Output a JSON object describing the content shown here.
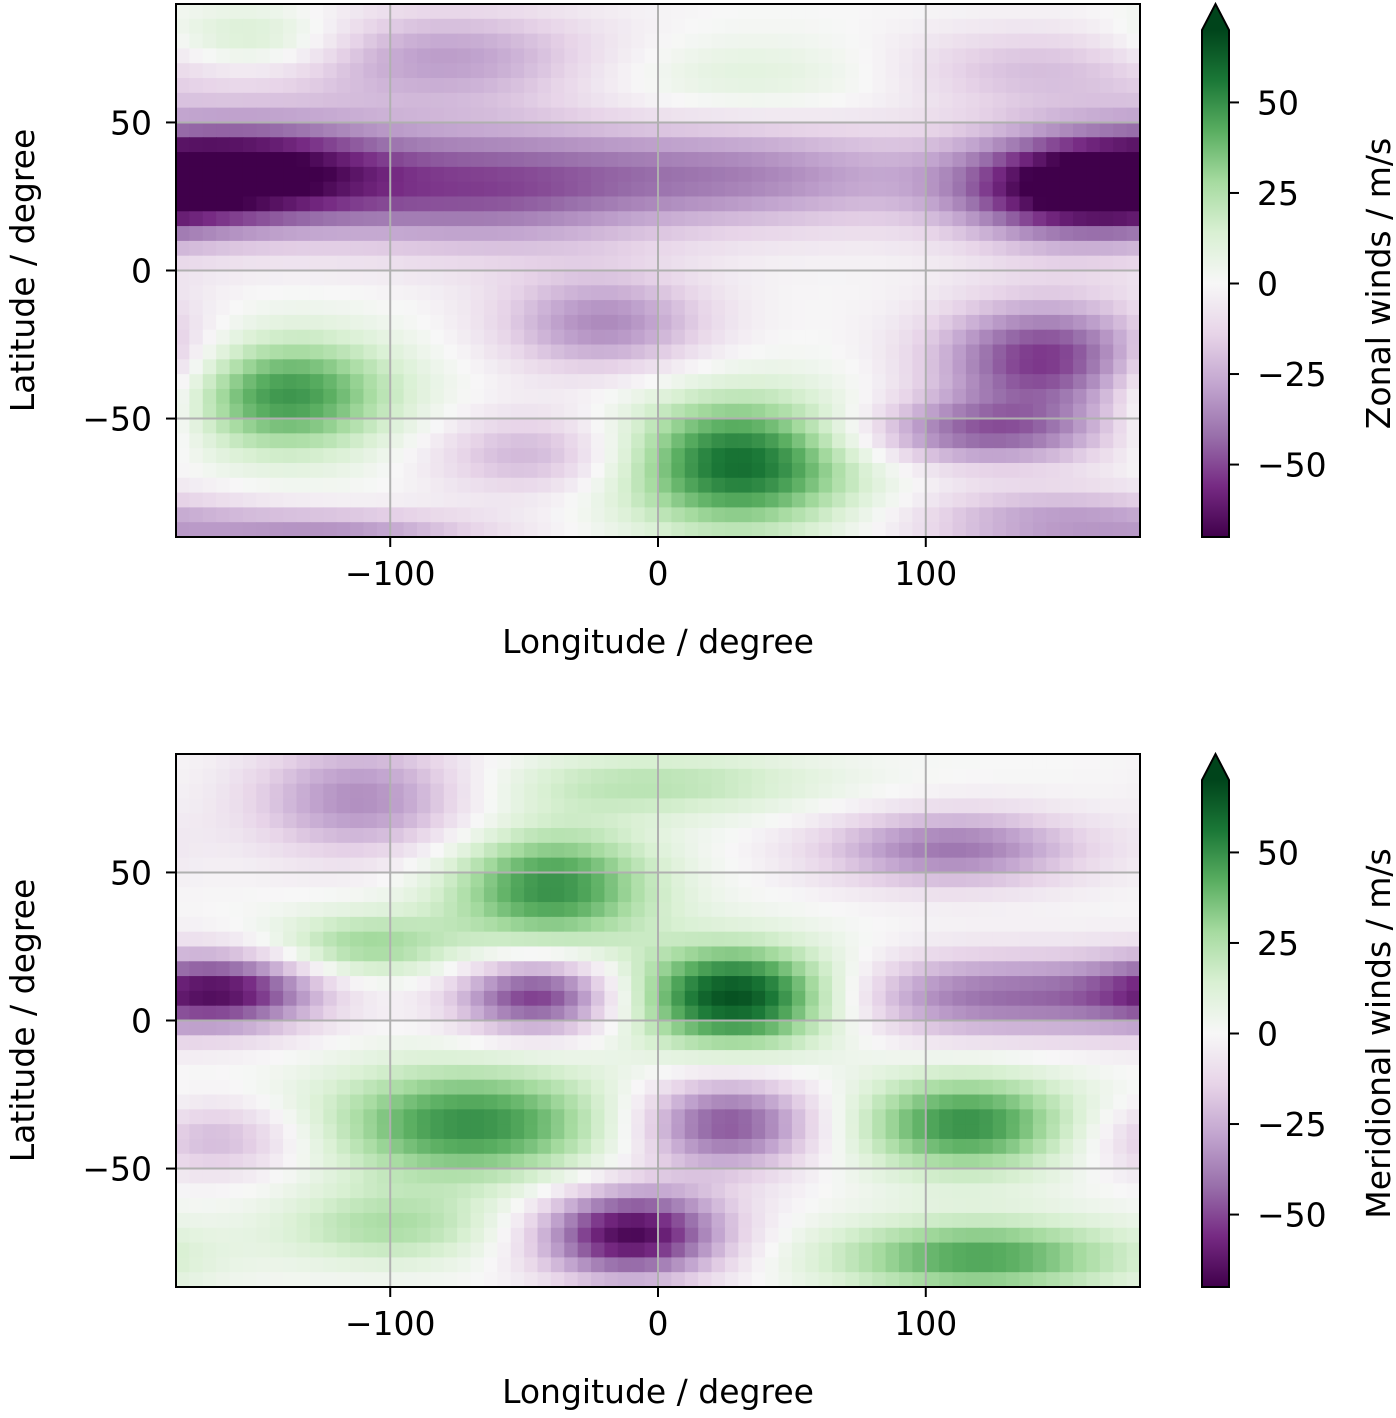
{
  "chart_data": [
    {
      "type": "heatmap",
      "title": "",
      "xlabel": "Longitude / degree",
      "ylabel": "Latitude / degree",
      "xlim": [
        -180,
        180
      ],
      "ylim": [
        -90,
        90
      ],
      "xticks": [
        -100,
        0,
        100
      ],
      "xtick_labels": [
        "−100",
        "0",
        "100"
      ],
      "yticks": [
        -50,
        0,
        50
      ],
      "ytick_labels": [
        "−50",
        "0",
        "50"
      ],
      "grid": true,
      "colormap": "PRGn",
      "colormap_stops": [
        "#40004b",
        "#762a83",
        "#9970ab",
        "#c2a5cf",
        "#e7d4e8",
        "#f7f7f7",
        "#d9f0d3",
        "#a6dba0",
        "#5aae61",
        "#1b7837",
        "#00441b"
      ],
      "vmin": -70,
      "vmax": 70,
      "colorbar_label": "Zonal winds / m/s",
      "colorbar_ticks": [
        50,
        25,
        0,
        -25,
        -50
      ],
      "colorbar_tick_labels": [
        "50",
        "25",
        "0",
        "−25",
        "−50"
      ],
      "colorbar_extend": "max",
      "features": [
        {
          "lon": -150,
          "lat": 78,
          "amp": 22,
          "slon": 25,
          "slat": 8
        },
        {
          "lon": 30,
          "lat": 65,
          "amp": 12,
          "slon": 45,
          "slat": 10
        },
        {
          "lon": -80,
          "lat": 72,
          "amp": -30,
          "slon": 45,
          "slat": 12
        },
        {
          "lon": 140,
          "lat": 68,
          "amp": -20,
          "slon": 40,
          "slat": 10
        },
        {
          "lon": -150,
          "lat": 33,
          "amp": -62,
          "slon": 35,
          "slat": 13
        },
        {
          "lon": -70,
          "lat": 28,
          "amp": -42,
          "slon": 45,
          "slat": 15
        },
        {
          "lon": 30,
          "lat": 32,
          "amp": -35,
          "slon": 55,
          "slat": 13
        },
        {
          "lon": 155,
          "lat": 28,
          "amp": -70,
          "slon": 32,
          "slat": 13
        },
        {
          "lon": -20,
          "lat": -18,
          "amp": -35,
          "slon": 28,
          "slat": 12
        },
        {
          "lon": 145,
          "lat": -30,
          "amp": -55,
          "slon": 30,
          "slat": 14
        },
        {
          "lon": 120,
          "lat": -55,
          "amp": -40,
          "slon": 35,
          "slat": 8
        },
        {
          "lon": -140,
          "lat": -42,
          "amp": 50,
          "slon": 30,
          "slat": 14
        },
        {
          "lon": 30,
          "lat": -65,
          "amp": 60,
          "slon": 32,
          "slat": 16
        },
        {
          "lon": -45,
          "lat": -62,
          "amp": -25,
          "slon": 28,
          "slat": 10
        },
        {
          "lon": -120,
          "lat": -88,
          "amp": -30,
          "slon": 40,
          "slat": 5
        },
        {
          "lon": 150,
          "lat": -85,
          "amp": -30,
          "slon": 40,
          "slat": 8
        }
      ]
    },
    {
      "type": "heatmap",
      "title": "",
      "xlabel": "Longitude / degree",
      "ylabel": "Latitude / degree",
      "xlim": [
        -180,
        180
      ],
      "ylim": [
        -90,
        90
      ],
      "xticks": [
        -100,
        0,
        100
      ],
      "xtick_labels": [
        "−100",
        "0",
        "100"
      ],
      "yticks": [
        -50,
        0,
        50
      ],
      "ytick_labels": [
        "−50",
        "0",
        "50"
      ],
      "grid": true,
      "colormap": "PRGn",
      "colormap_stops": [
        "#40004b",
        "#762a83",
        "#9970ab",
        "#c2a5cf",
        "#e7d4e8",
        "#f7f7f7",
        "#d9f0d3",
        "#a6dba0",
        "#5aae61",
        "#1b7837",
        "#00441b"
      ],
      "vmin": -70,
      "vmax": 70,
      "colorbar_label": "Meridional winds / m/s",
      "colorbar_ticks": [
        50,
        25,
        0,
        -25,
        -50
      ],
      "colorbar_tick_labels": [
        "50",
        "25",
        "0",
        "−25",
        "−50"
      ],
      "colorbar_extend": "max",
      "features": [
        {
          "lon": -110,
          "lat": 75,
          "amp": -35,
          "slon": 30,
          "slat": 14
        },
        {
          "lon": 110,
          "lat": 58,
          "amp": -40,
          "slon": 35,
          "slat": 9
        },
        {
          "lon": 0,
          "lat": 80,
          "amp": 22,
          "slon": 45,
          "slat": 8
        },
        {
          "lon": -40,
          "lat": 45,
          "amp": 50,
          "slon": 28,
          "slat": 14
        },
        {
          "lon": -110,
          "lat": 25,
          "amp": 30,
          "slon": 25,
          "slat": 8
        },
        {
          "lon": -160,
          "lat": 10,
          "amp": -50,
          "slon": 25,
          "slat": 9
        },
        {
          "lon": -45,
          "lat": 8,
          "amp": -55,
          "slon": 22,
          "slat": 9
        },
        {
          "lon": 30,
          "lat": 8,
          "amp": 72,
          "slon": 28,
          "slat": 12
        },
        {
          "lon": 130,
          "lat": 8,
          "amp": -42,
          "slon": 50,
          "slat": 10
        },
        {
          "lon": -70,
          "lat": -35,
          "amp": 50,
          "slon": 40,
          "slat": 14
        },
        {
          "lon": 25,
          "lat": -35,
          "amp": -50,
          "slon": 25,
          "slat": 11
        },
        {
          "lon": 115,
          "lat": -35,
          "amp": 50,
          "slon": 30,
          "slat": 12
        },
        {
          "lon": -165,
          "lat": -40,
          "amp": -25,
          "slon": 25,
          "slat": 9
        },
        {
          "lon": -10,
          "lat": -72,
          "amp": -68,
          "slon": 25,
          "slat": 11
        },
        {
          "lon": 120,
          "lat": -80,
          "amp": 45,
          "slon": 40,
          "slat": 9
        },
        {
          "lon": -100,
          "lat": -70,
          "amp": 25,
          "slon": 30,
          "slat": 9
        }
      ]
    }
  ]
}
